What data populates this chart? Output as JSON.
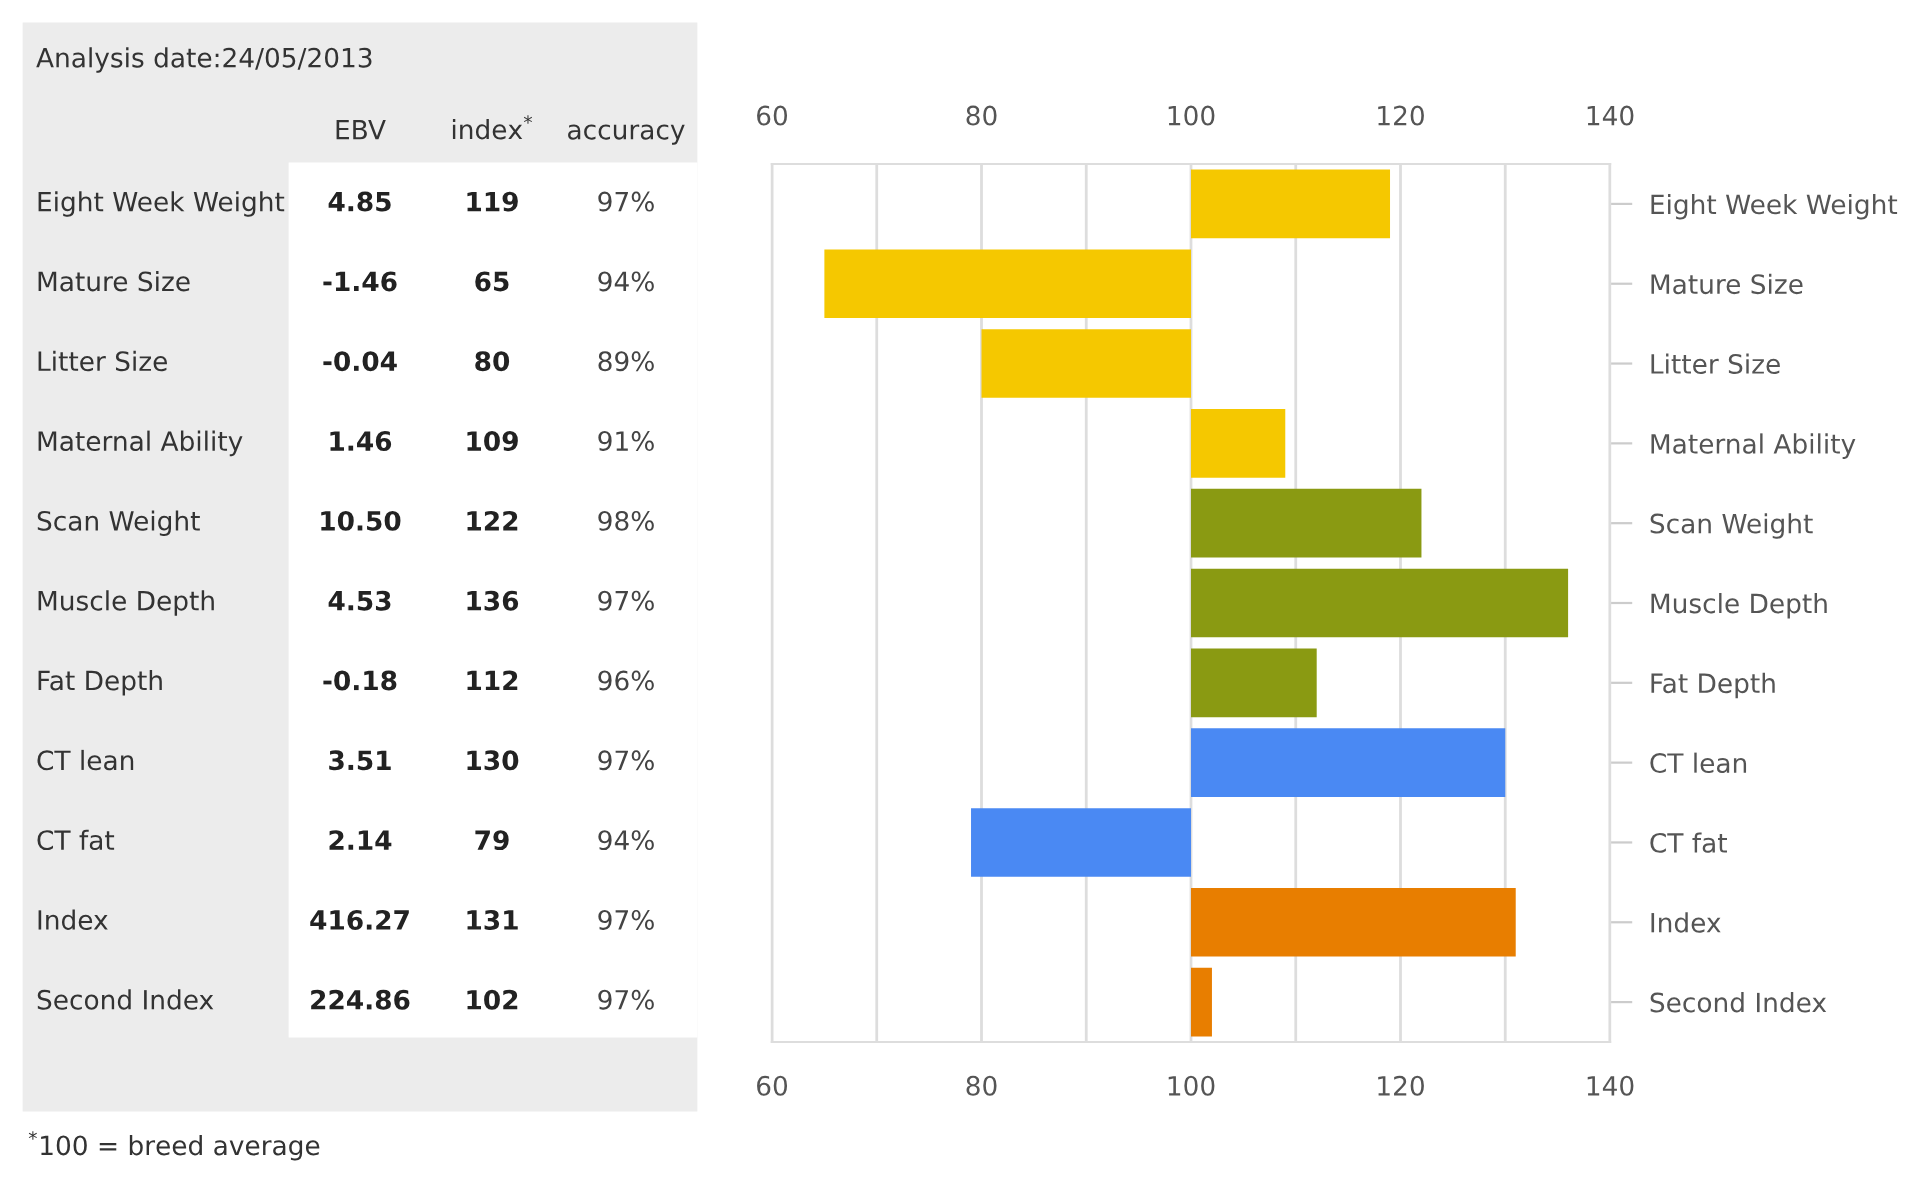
{
  "chart_data": {
    "type": "bar",
    "orientation": "horizontal",
    "title": "Analysis date:24/05/2013",
    "categories": [
      "Eight Week Weight",
      "Mature Size",
      "Litter Size",
      "Maternal Ability",
      "Scan Weight",
      "Muscle Depth",
      "Fat Depth",
      "CT lean",
      "CT fat",
      "Index",
      "Second Index"
    ],
    "base": [
      100,
      100,
      100,
      100,
      100,
      100,
      100,
      100,
      100,
      100,
      100
    ],
    "values": [
      19,
      -35,
      -20,
      9,
      22,
      36,
      12,
      30,
      -21,
      31,
      2
    ],
    "colors": [
      "#f5c800",
      "#f5c800",
      "#f5c800",
      "#f5c800",
      "#8a9a12",
      "#8a9a12",
      "#8a9a12",
      "#4a89f3",
      "#4a89f3",
      "#e87e00",
      "#e87e00"
    ],
    "xlim": [
      60,
      140
    ],
    "xticks": [
      60,
      {
        "value": 70,
        "label": null
      },
      80,
      {
        "value": 90,
        "label": null
      },
      100,
      {
        "value": 110,
        "label": null
      },
      120,
      {
        "value": 130,
        "label": null
      },
      140
    ],
    "x2lim": [
      60,
      140
    ],
    "x2ticks": [
      60,
      80,
      100,
      120,
      140
    ],
    "grid": "x",
    "annotations": [
      "EBV",
      "index$^{*}$",
      "accuracy",
      "Eight Week Weight",
      "4.85",
      "119",
      "97%",
      "Mature Size",
      "-1.46",
      "65",
      "94%",
      "Litter Size",
      "-0.04",
      "80",
      "89%",
      "Maternal Ability",
      "1.46",
      "109",
      "91%",
      "Scan Weight",
      "10.50",
      "122",
      "98%",
      "Muscle Depth",
      "4.53",
      "136",
      "97%",
      "Fat Depth",
      "-0.18",
      "112",
      "96%",
      "CT lean",
      "3.51",
      "130",
      "97%",
      "CT fat",
      "2.14",
      "79",
      "94%",
      "Index",
      "416.27",
      "131",
      "97%",
      "Second Index",
      "224.86",
      "102",
      "97%",
      "$^{*}$100 = breed average"
    ]
  }
}
